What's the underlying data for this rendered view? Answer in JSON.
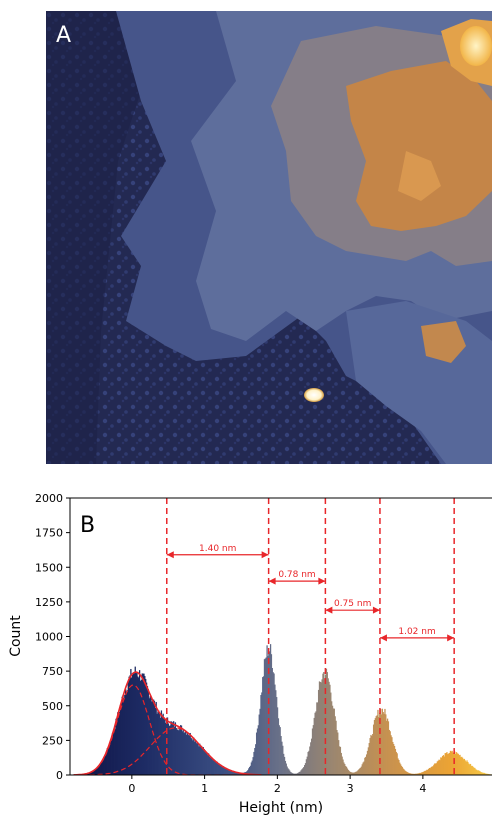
{
  "panel_a": {
    "label": "A",
    "colors": {
      "substrate": "#232952",
      "substrate_texture": "#3a4478",
      "flake_layer1": "#4a5a8e",
      "flake_layer2": "#65749c",
      "flake_layer3": "#8b8790",
      "flake_layer4": "#c88b4a",
      "flake_layer5": "#e8a44a",
      "particle": "#fff6da"
    }
  },
  "chart_data": {
    "type": "area",
    "panel_label": "B",
    "title": "",
    "xlabel": "Height (nm)",
    "ylabel": "Count",
    "xlim": [
      -0.85,
      4.95
    ],
    "ylim": [
      0,
      2000
    ],
    "xticks": [
      "0",
      "1",
      "2",
      "3",
      "4"
    ],
    "xtick_values": [
      0,
      1,
      2,
      3,
      4
    ],
    "yticks": [
      "0",
      "250",
      "500",
      "750",
      "1000",
      "1250",
      "1500",
      "1750",
      "2000"
    ],
    "ytick_values": [
      0,
      250,
      500,
      750,
      1000,
      1250,
      1500,
      1750,
      2000
    ],
    "colormap": [
      "#0c1142",
      "#243a73",
      "#556a8a",
      "#8f8476",
      "#c18f56",
      "#eba334",
      "#f6cc48"
    ],
    "histogram_peaks": [
      {
        "center": 0.02,
        "amplitude": 650,
        "width": 0.22
      },
      {
        "center": 0.6,
        "amplitude": 340,
        "width": 0.35
      },
      {
        "center": 1.88,
        "amplitude": 910,
        "width": 0.11
      },
      {
        "center": 2.65,
        "amplitude": 740,
        "width": 0.13
      },
      {
        "center": 3.43,
        "amplitude": 470,
        "width": 0.14
      },
      {
        "center": 4.4,
        "amplitude": 165,
        "width": 0.2
      }
    ],
    "fit_series": [
      {
        "name": "",
        "center": 0.02,
        "amplitude": 650,
        "width": 0.22,
        "style": "dashed"
      },
      {
        "name": "",
        "center": 0.6,
        "amplitude": 340,
        "width": 0.35,
        "style": "dashed"
      }
    ],
    "vertical_lines": [
      0.48,
      1.88,
      2.66,
      3.41,
      4.43
    ],
    "annotations": [
      {
        "label": "1.40 nm",
        "x_start": 0.48,
        "x_end": 1.88,
        "y": 1590
      },
      {
        "label": "0.78 nm",
        "x_start": 1.88,
        "x_end": 2.66,
        "y": 1400
      },
      {
        "label": "0.75 nm",
        "x_start": 2.66,
        "x_end": 3.41,
        "y": 1190
      },
      {
        "label": "1.02 nm",
        "x_start": 3.41,
        "x_end": 4.43,
        "y": 990
      }
    ],
    "annotation_color": "#e8262a",
    "fit_color": "#e8262a",
    "grid": false
  }
}
